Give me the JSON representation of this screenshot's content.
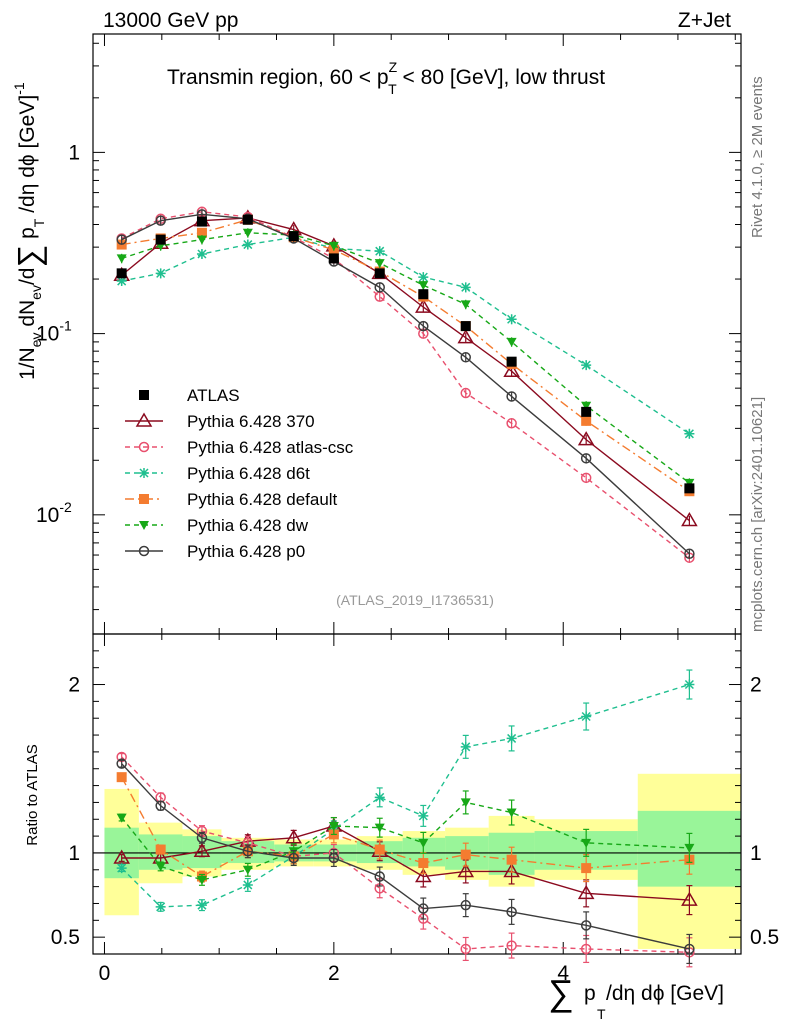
{
  "header": {
    "beam": "13000 GeV pp",
    "process": "Z+Jet",
    "title": "Transmin region, 60 < p",
    "title_sup": "Z",
    "title_sub": "T",
    "title_tail": " < 80 [GeV], low thrust",
    "side_rivet": "Rivet 4.1.0, ≥ 2M events",
    "side_mcplots": "mcplots.cern.ch [arXiv:2401.10621]",
    "analysis_id": "(ATLAS_2019_I1736531)"
  },
  "axes": {
    "main_ylabel_a": "1/N",
    "main_ylabel_ev": "ev",
    "main_ylabel_b": " dN",
    "main_ylabel_c": "/d",
    "main_ylabel_sum": "∑",
    "main_ylabel_d": " p",
    "main_ylabel_t": "T",
    "main_ylabel_e": " /dη dϕ  [GeV]",
    "main_ylabel_exp": "-1",
    "ratio_ylabel": "Ratio to ATLAS",
    "xlabel_sum": "∑",
    "xlabel_p": "p",
    "xlabel_t": "T",
    "xlabel_rest": " /dη dϕ [GeV]",
    "main_yticks": [
      {
        "value": 0.01,
        "base": "10",
        "exp": "-2"
      },
      {
        "value": 0.1,
        "base": "10",
        "exp": "-1"
      },
      {
        "value": 1,
        "base": "1",
        "exp": ""
      }
    ],
    "ratio_yticks": [
      {
        "value": 0.5,
        "label": "0.5"
      },
      {
        "value": 1,
        "label": "1"
      },
      {
        "value": 2,
        "label": "2"
      }
    ],
    "xticks": [
      {
        "value": 0,
        "label": "0"
      },
      {
        "value": 2,
        "label": "2"
      },
      {
        "value": 4,
        "label": "4"
      }
    ]
  },
  "chart_data": {
    "type": "line",
    "xlabel": "∑ pT /dη dϕ [GeV]",
    "ylabel": "1/Nev dNev/d∑ pT /dη dϕ [GeV]-1",
    "yscale": "log",
    "xlim": [
      -0.1,
      5.55
    ],
    "ylim": [
      0.0022,
      4.5
    ],
    "ratio_ylim": [
      0.4,
      2.3
    ],
    "x": [
      0.15,
      0.49,
      0.85,
      1.25,
      1.65,
      2.0,
      2.4,
      2.78,
      3.15,
      3.55,
      4.2,
      5.1
    ],
    "bin_edges": [
      0,
      0.3,
      0.68,
      1.02,
      1.48,
      1.82,
      2.2,
      2.6,
      2.97,
      3.35,
      3.75,
      4.65,
      5.55
    ],
    "series": [
      {
        "name": "ATLAS",
        "color": "#000000",
        "marker": "square-filled",
        "dash": "none",
        "values": [
          0.215,
          0.33,
          0.415,
          0.425,
          0.345,
          0.26,
          0.215,
          0.165,
          0.11,
          0.07,
          0.037,
          0.014
        ],
        "ratio": [
          1,
          1,
          1,
          1,
          1,
          1,
          1,
          1,
          1,
          1,
          1,
          1
        ]
      },
      {
        "name": "Pythia 6.428 370",
        "color": "#8b0a1f",
        "marker": "triangle-open",
        "dash": "none",
        "values": [
          0.21,
          0.315,
          0.42,
          0.435,
          0.375,
          0.305,
          0.215,
          0.14,
          0.095,
          0.062,
          0.026,
          0.0093
        ],
        "ratio": [
          0.97,
          0.97,
          1.01,
          1.07,
          1.09,
          1.16,
          1.01,
          0.86,
          0.89,
          0.89,
          0.76,
          0.72
        ]
      },
      {
        "name": "Pythia 6.428 atlas-csc",
        "color": "#e8506e",
        "marker": "circle-open",
        "dash": "5,4",
        "values": [
          0.335,
          0.43,
          0.47,
          0.44,
          0.34,
          0.26,
          0.16,
          0.1,
          0.047,
          0.032,
          0.016,
          0.0058
        ],
        "ratio": [
          1.57,
          1.33,
          1.13,
          1.06,
          0.98,
          1.0,
          0.79,
          0.61,
          0.43,
          0.45,
          0.43,
          0.41
        ]
      },
      {
        "name": "Pythia 6.428 d6t",
        "color": "#1fbf8f",
        "marker": "star",
        "dash": "5,4",
        "values": [
          0.195,
          0.215,
          0.275,
          0.31,
          0.34,
          0.295,
          0.285,
          0.205,
          0.18,
          0.12,
          0.067,
          0.028
        ],
        "ratio": [
          0.91,
          0.68,
          0.69,
          0.81,
          0.98,
          1.14,
          1.33,
          1.22,
          1.63,
          1.68,
          1.81,
          2.0
        ]
      },
      {
        "name": "Pythia 6.428 default",
        "color": "#f47c30",
        "marker": "square-filled",
        "dash": "9,4,2,4",
        "values": [
          0.31,
          0.335,
          0.36,
          0.425,
          0.34,
          0.29,
          0.22,
          0.16,
          0.11,
          0.068,
          0.033,
          0.0135
        ],
        "ratio": [
          1.45,
          1.02,
          0.86,
          1.01,
          0.98,
          1.11,
          1.02,
          0.94,
          0.99,
          0.96,
          0.91,
          0.96
        ]
      },
      {
        "name": "Pythia 6.428 dw",
        "color": "#17a817",
        "marker": "triangle-down-filled",
        "dash": "5,4",
        "values": [
          0.26,
          0.305,
          0.33,
          0.36,
          0.35,
          0.305,
          0.245,
          0.185,
          0.145,
          0.09,
          0.04,
          0.015
        ],
        "ratio": [
          1.21,
          0.92,
          0.84,
          0.9,
          1.01,
          1.16,
          1.15,
          1.06,
          1.3,
          1.24,
          1.06,
          1.03
        ]
      },
      {
        "name": "Pythia 6.428 p0",
        "color": "#3c3c3c",
        "marker": "circle-open",
        "dash": "none",
        "values": [
          0.33,
          0.42,
          0.455,
          0.43,
          0.335,
          0.25,
          0.18,
          0.11,
          0.074,
          0.045,
          0.0205,
          0.0061
        ],
        "ratio": [
          1.53,
          1.28,
          1.09,
          1.01,
          0.97,
          0.97,
          0.86,
          0.67,
          0.69,
          0.65,
          0.57,
          0.43
        ]
      }
    ],
    "ratio_band_inner": [
      [
        0.85,
        1.15
      ],
      [
        0.9,
        1.11
      ],
      [
        0.91,
        1.1
      ],
      [
        0.94,
        1.07
      ],
      [
        0.95,
        1.05
      ],
      [
        0.95,
        1.05
      ],
      [
        0.94,
        1.07
      ],
      [
        0.92,
        1.09
      ],
      [
        0.9,
        1.1
      ],
      [
        0.87,
        1.12
      ],
      [
        0.9,
        1.13
      ],
      [
        0.8,
        1.25
      ]
    ],
    "ratio_band_outer": [
      [
        0.63,
        1.38
      ],
      [
        0.82,
        1.18
      ],
      [
        0.86,
        1.14
      ],
      [
        0.9,
        1.09
      ],
      [
        0.92,
        1.08
      ],
      [
        0.92,
        1.08
      ],
      [
        0.9,
        1.1
      ],
      [
        0.87,
        1.13
      ],
      [
        0.84,
        1.15
      ],
      [
        0.8,
        1.22
      ],
      [
        0.84,
        1.2
      ],
      [
        0.43,
        1.47
      ]
    ]
  }
}
